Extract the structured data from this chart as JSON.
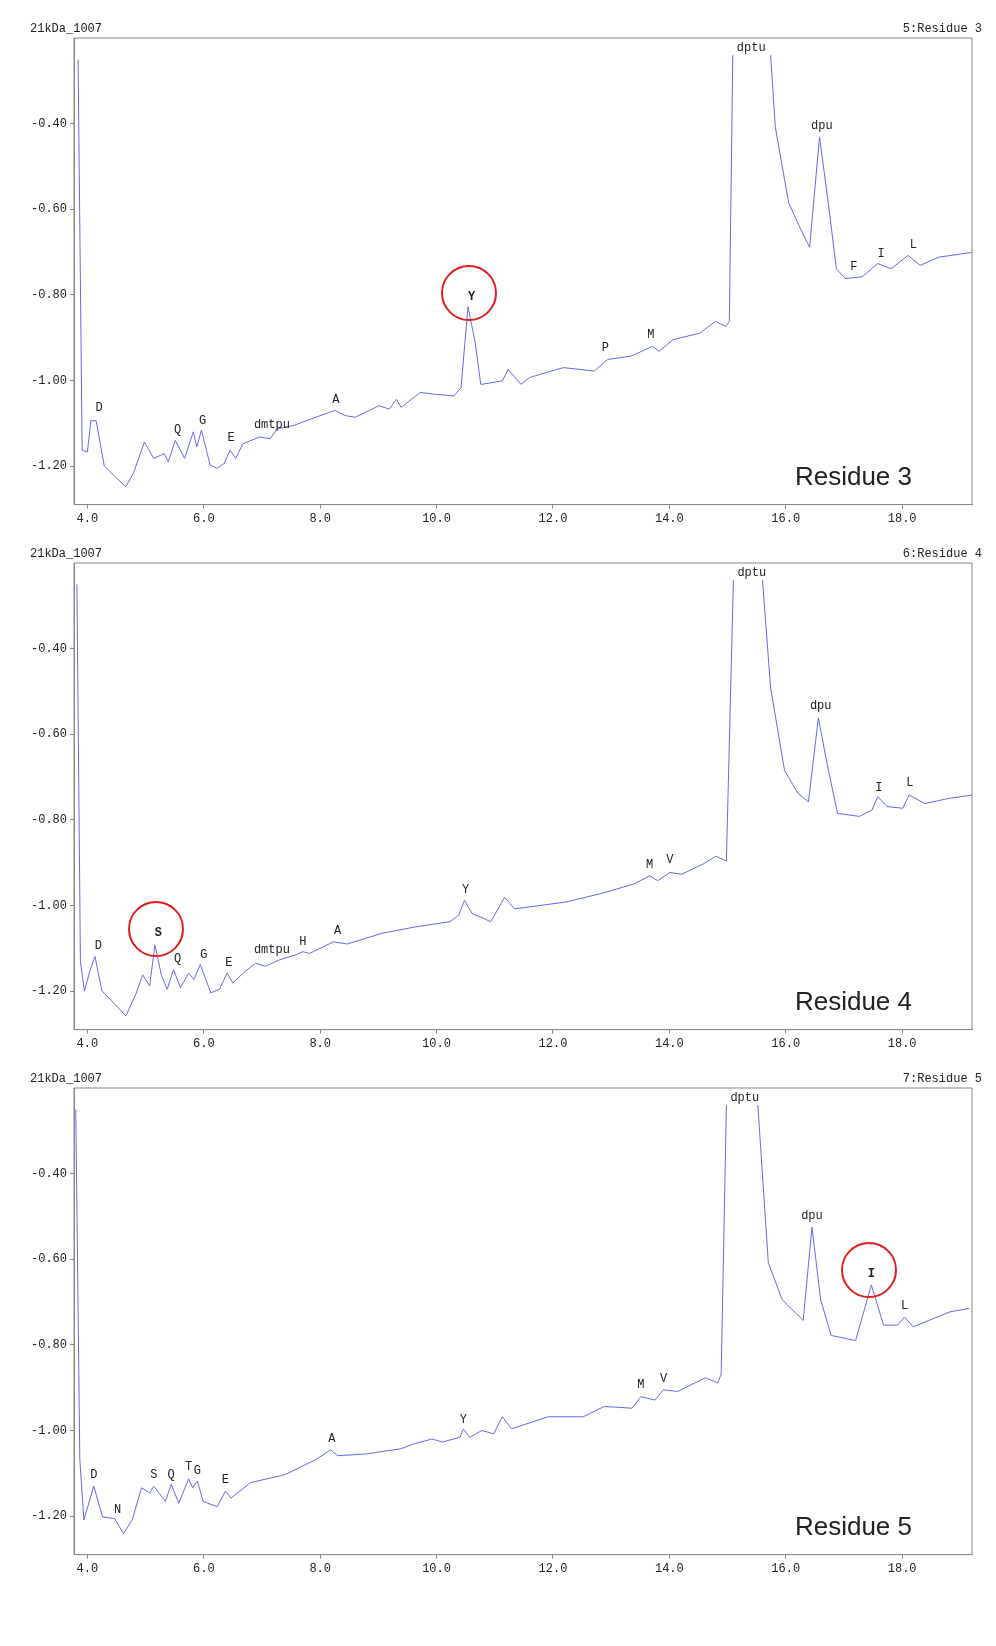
{
  "chart_data": [
    {
      "type": "line",
      "title": "21kDa_1007",
      "subtitle": "5:Residue 3",
      "color": "#6868f0",
      "marker": "none",
      "line_style": "solid",
      "grid": false,
      "xlim": [
        3.77,
        19.2
      ],
      "ylim": [
        -1.29,
        -0.2
      ],
      "xticks": [
        {
          "value": 4,
          "label": "4.0"
        },
        {
          "value": 6,
          "label": "6.0"
        },
        {
          "value": 8,
          "label": "8.0"
        },
        {
          "value": 10,
          "label": "10.0"
        },
        {
          "value": 12,
          "label": "12.0"
        },
        {
          "value": 14,
          "label": "14.0"
        },
        {
          "value": 16,
          "label": "16.0"
        },
        {
          "value": 18,
          "label": "18.0"
        }
      ],
      "yticks": [
        {
          "value": -0.4,
          "label": "-0.40"
        },
        {
          "value": -0.6,
          "label": "-0.60"
        },
        {
          "value": -0.8,
          "label": "-0.80"
        },
        {
          "value": -1.0,
          "label": "-1.00"
        },
        {
          "value": -1.2,
          "label": "-1.20"
        }
      ],
      "x": [
        3.84,
        3.91,
        4.0,
        4.06,
        4.15,
        4.29,
        4.44,
        4.66,
        4.79,
        4.98,
        5.14,
        5.32,
        5.39,
        5.51,
        5.67,
        5.82,
        5.88,
        5.96,
        6.11,
        6.23,
        6.35,
        6.45,
        6.55,
        6.67,
        6.96,
        7.14,
        7.26,
        7.55,
        7.84,
        8.25,
        8.43,
        8.6,
        9.01,
        9.19,
        9.31,
        9.39,
        9.72,
        9.95,
        10.3,
        10.42,
        10.54,
        10.66,
        10.76,
        10.78,
        11.13,
        11.23,
        11.45,
        11.6,
        12.18,
        12.71,
        12.94,
        13.35,
        13.71,
        13.82,
        14.06,
        14.53,
        14.79,
        14.97,
        15.03,
        15.09,
        15.4,
        15.74,
        15.82,
        16.05,
        16.23,
        16.41,
        16.58,
        16.73,
        16.87,
        17.02,
        17.31,
        17.58,
        17.81,
        18.1,
        18.31,
        18.63,
        19.19
      ],
      "values": [
        -0.25,
        -1.163,
        -1.167,
        -1.094,
        -1.094,
        -1.2,
        -1.22,
        -1.248,
        -1.217,
        -1.144,
        -1.182,
        -1.171,
        -1.19,
        -1.14,
        -1.182,
        -1.12,
        -1.155,
        -1.116,
        -1.198,
        -1.205,
        -1.194,
        -1.163,
        -1.182,
        -1.148,
        -1.132,
        -1.136,
        -1.113,
        -1.105,
        -1.09,
        -1.07,
        -1.082,
        -1.086,
        -1.059,
        -1.067,
        -1.044,
        -1.063,
        -1.028,
        -1.032,
        -1.036,
        -1.017,
        -0.828,
        -0.909,
        -1.009,
        -1.009,
        -1.001,
        -0.974,
        -1.009,
        -0.993,
        -0.97,
        -0.978,
        -0.951,
        -0.943,
        -0.92,
        -0.932,
        -0.905,
        -0.889,
        -0.862,
        -0.874,
        -0.862,
        -0.24,
        null,
        -0.24,
        -0.408,
        -0.585,
        -0.639,
        -0.689,
        -0.431,
        -0.585,
        -0.739,
        -0.762,
        -0.758,
        -0.727,
        -0.739,
        -0.708,
        -0.731,
        -0.712,
        -0.701
      ],
      "annotations": [
        {
          "text": "D",
          "x": 4.2,
          "y": -1.09
        },
        {
          "text": "Q",
          "x": 5.55,
          "y": -1.14
        },
        {
          "text": "G",
          "x": 5.98,
          "y": -1.12
        },
        {
          "text": "E",
          "x": 6.47,
          "y": -1.16
        },
        {
          "text": "dmtpu",
          "x": 7.17,
          "y": -1.13
        },
        {
          "text": "A",
          "x": 8.27,
          "y": -1.07
        },
        {
          "text": "Y",
          "x": 10.6,
          "y": -0.83
        },
        {
          "text": "P",
          "x": 12.9,
          "y": -0.95
        },
        {
          "text": "M",
          "x": 13.68,
          "y": -0.92
        },
        {
          "text": "dptu",
          "x": 15.09,
          "y": -0.24
        },
        {
          "text": "dpu",
          "x": 16.62,
          "y": -0.43
        },
        {
          "text": "F",
          "x": 17.17,
          "y": -0.76
        },
        {
          "text": "I",
          "x": 17.64,
          "y": -0.73
        },
        {
          "text": "L",
          "x": 18.19,
          "y": -0.71
        },
        "Residue 3"
      ]
    },
    {
      "type": "line",
      "title": "21kDa_1007",
      "subtitle": "6:Residue 4",
      "color": "#6868f0",
      "marker": "none",
      "line_style": "solid",
      "grid": false,
      "xlim": [
        3.77,
        19.2
      ],
      "ylim": [
        -1.29,
        -0.2
      ],
      "xticks": [
        {
          "value": 4,
          "label": "4.0"
        },
        {
          "value": 6,
          "label": "6.0"
        },
        {
          "value": 8,
          "label": "8.0"
        },
        {
          "value": 10,
          "label": "10.0"
        },
        {
          "value": 12,
          "label": "12.0"
        },
        {
          "value": 14,
          "label": "14.0"
        },
        {
          "value": 16,
          "label": "16.0"
        },
        {
          "value": 18,
          "label": "18.0"
        }
      ],
      "yticks": [
        {
          "value": -0.4,
          "label": "-0.40"
        },
        {
          "value": -0.6,
          "label": "-0.60"
        },
        {
          "value": -0.8,
          "label": "-0.80"
        },
        {
          "value": -1.0,
          "label": "-1.00"
        },
        {
          "value": -1.2,
          "label": "-1.20"
        }
      ],
      "x": [
        3.82,
        3.88,
        3.95,
        4.04,
        4.13,
        4.25,
        4.42,
        4.66,
        4.83,
        4.95,
        5.07,
        5.16,
        5.27,
        5.37,
        5.48,
        5.6,
        5.74,
        5.83,
        5.94,
        6.12,
        6.27,
        6.4,
        6.5,
        6.71,
        6.89,
        7.06,
        7.3,
        7.59,
        7.7,
        7.82,
        8.23,
        8.47,
        9.06,
        9.64,
        10.23,
        10.38,
        10.48,
        10.61,
        10.82,
        10.93,
        11.17,
        11.34,
        12.22,
        12.8,
        13.39,
        13.66,
        13.8,
        14.01,
        14.21,
        14.57,
        14.8,
        14.98,
        15.1,
        15.35,
        15.6,
        15.74,
        15.98,
        16.21,
        16.39,
        16.56,
        16.71,
        16.89,
        17.27,
        17.48,
        17.58,
        17.74,
        18.01,
        18.12,
        18.39,
        18.8,
        19.2
      ],
      "values": [
        -0.25,
        -1.131,
        -1.2,
        -1.154,
        -1.119,
        -1.2,
        -1.223,
        -1.258,
        -1.208,
        -1.162,
        -1.188,
        -1.092,
        -1.162,
        -1.196,
        -1.15,
        -1.192,
        -1.158,
        -1.173,
        -1.138,
        -1.204,
        -1.196,
        -1.158,
        -1.181,
        -1.154,
        -1.135,
        -1.142,
        -1.127,
        -1.115,
        -1.108,
        -1.112,
        -1.085,
        -1.09,
        -1.065,
        -1.05,
        -1.038,
        -1.023,
        -0.988,
        -1.019,
        -1.031,
        -1.038,
        -0.981,
        -1.008,
        -0.992,
        -0.973,
        -0.95,
        -0.931,
        -0.942,
        -0.923,
        -0.927,
        -0.904,
        -0.885,
        -0.896,
        -0.24,
        null,
        -0.24,
        -0.492,
        -0.685,
        -0.738,
        -0.758,
        -0.562,
        -0.669,
        -0.785,
        -0.792,
        -0.777,
        -0.746,
        -0.769,
        -0.773,
        -0.742,
        -0.762,
        -0.75,
        -0.742
      ],
      "annotations": [
        {
          "text": "D",
          "x": 4.19,
          "y": -1.12
        },
        {
          "text": "S",
          "x": 5.22,
          "y": -1.09
        },
        {
          "text": "Q",
          "x": 5.55,
          "y": -1.15
        },
        {
          "text": "G",
          "x": 6.0,
          "y": -1.14
        },
        {
          "text": "E",
          "x": 6.43,
          "y": -1.16
        },
        {
          "text": "dmtpu",
          "x": 7.17,
          "y": -1.13
        },
        {
          "text": "H",
          "x": 7.7,
          "y": -1.11
        },
        {
          "text": "A",
          "x": 8.3,
          "y": -1.085
        },
        {
          "text": "Y",
          "x": 10.5,
          "y": -0.99
        },
        {
          "text": "M",
          "x": 13.66,
          "y": -0.93
        },
        {
          "text": "V",
          "x": 14.01,
          "y": -0.92
        },
        {
          "text": "dptu",
          "x": 15.1,
          "y": -0.24
        },
        {
          "text": "dpu",
          "x": 16.6,
          "y": -0.56
        },
        {
          "text": "I",
          "x": 17.6,
          "y": -0.75
        },
        {
          "text": "L",
          "x": 18.13,
          "y": -0.74
        },
        "Residue 4"
      ]
    },
    {
      "type": "line",
      "title": "21kDa_1007",
      "subtitle": "7:Residue 5",
      "color": "#6868f0",
      "marker": "none",
      "line_style": "solid",
      "grid": false,
      "xlim": [
        3.77,
        19.2
      ],
      "ylim": [
        -1.29,
        -0.2
      ],
      "xticks": [
        {
          "value": 4,
          "label": "4.0"
        },
        {
          "value": 6,
          "label": "6.0"
        },
        {
          "value": 8,
          "label": "8.0"
        },
        {
          "value": 10,
          "label": "10.0"
        },
        {
          "value": 12,
          "label": "12.0"
        },
        {
          "value": 14,
          "label": "14.0"
        },
        {
          "value": 16,
          "label": "16.0"
        },
        {
          "value": 18,
          "label": "18.0"
        }
      ],
      "yticks": [
        {
          "value": -0.4,
          "label": "-0.40"
        },
        {
          "value": -0.6,
          "label": "-0.60"
        },
        {
          "value": -0.8,
          "label": "-0.80"
        },
        {
          "value": -1.0,
          "label": "-1.00"
        },
        {
          "value": -1.2,
          "label": "-1.20"
        }
      ],
      "x": [
        3.8,
        3.87,
        3.94,
        4.11,
        4.26,
        4.47,
        4.62,
        4.77,
        4.93,
        5.07,
        5.14,
        5.34,
        5.44,
        5.57,
        5.74,
        5.81,
        5.89,
        5.99,
        6.23,
        6.37,
        6.47,
        6.8,
        7.4,
        7.94,
        8.18,
        8.3,
        8.78,
        9.38,
        9.62,
        9.92,
        10.1,
        10.4,
        10.46,
        10.57,
        10.78,
        10.98,
        11.13,
        11.29,
        11.92,
        12.52,
        12.88,
        13.36,
        13.51,
        13.75,
        13.9,
        14.14,
        14.62,
        14.83,
        14.89,
        14.98,
        15.25,
        15.52,
        15.7,
        15.94,
        16.3,
        16.45,
        16.6,
        16.78,
        17.2,
        17.47,
        17.68,
        17.92,
        18.04,
        18.19,
        18.82,
        19.15
      ],
      "values": [
        -0.25,
        -1.067,
        -1.209,
        -1.13,
        -1.202,
        -1.206,
        -1.241,
        -1.209,
        -1.134,
        -1.146,
        -1.13,
        -1.166,
        -1.126,
        -1.17,
        -1.113,
        -1.134,
        -1.118,
        -1.166,
        -1.178,
        -1.142,
        -1.158,
        -1.122,
        -1.103,
        -1.067,
        -1.045,
        -1.059,
        -1.055,
        -1.043,
        -1.031,
        -1.02,
        -1.027,
        -1.016,
        -0.997,
        -1.016,
        -1.0,
        -1.008,
        -0.968,
        -0.996,
        -0.968,
        -0.968,
        -0.944,
        -0.948,
        -0.921,
        -0.929,
        -0.905,
        -0.909,
        -0.877,
        -0.889,
        -0.869,
        -0.24,
        null,
        -0.24,
        -0.608,
        -0.695,
        -0.743,
        -0.525,
        -0.695,
        -0.778,
        -0.79,
        -0.66,
        -0.754,
        -0.754,
        -0.735,
        -0.758,
        -0.723,
        -0.715
      ],
      "annotations": [
        {
          "text": "D",
          "x": 4.11,
          "y": -1.13
        },
        {
          "text": "N",
          "x": 4.52,
          "y": -1.21
        },
        {
          "text": "S",
          "x": 5.14,
          "y": -1.13
        },
        {
          "text": "Q",
          "x": 5.44,
          "y": -1.13
        },
        {
          "text": "T",
          "x": 5.74,
          "y": -1.11
        },
        {
          "text": "G",
          "x": 5.89,
          "y": -1.12
        },
        {
          "text": "E",
          "x": 6.37,
          "y": -1.14
        },
        {
          "text": "A",
          "x": 8.2,
          "y": -1.045
        },
        {
          "text": "Y",
          "x": 10.46,
          "y": -1.0
        },
        {
          "text": "M",
          "x": 13.51,
          "y": -0.92
        },
        {
          "text": "V",
          "x": 13.9,
          "y": -0.905
        },
        {
          "text": "dptu",
          "x": 14.98,
          "y": -0.24
        },
        {
          "text": "dpu",
          "x": 16.45,
          "y": -0.525
        },
        {
          "text": "I",
          "x": 17.47,
          "y": -0.66
        },
        {
          "text": "L",
          "x": 18.04,
          "y": -0.735
        },
        "Residue 5"
      ]
    }
  ]
}
